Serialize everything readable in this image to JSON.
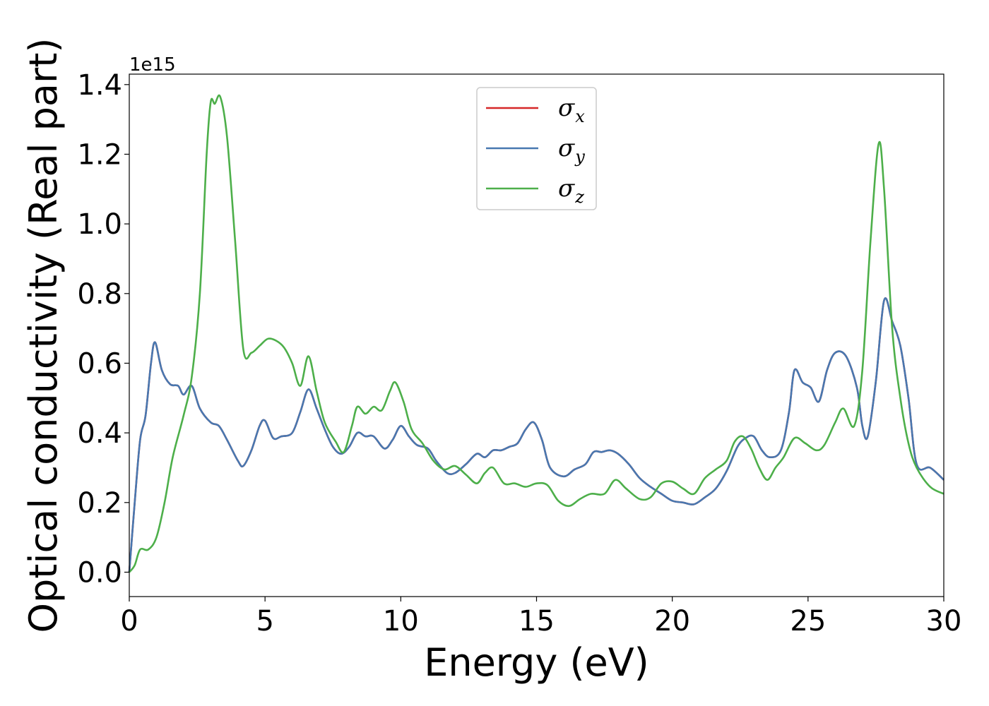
{
  "chart_data": {
    "type": "line",
    "xlabel": "Energy (eV)",
    "ylabel": "Optical conductivity (Real part)",
    "y_offset_label": "1e15",
    "xlim": [
      0,
      30
    ],
    "ylim": [
      -0.07,
      1.43
    ],
    "x_ticks": [
      0,
      5,
      10,
      15,
      20,
      25,
      30
    ],
    "x_tick_labels": [
      "0",
      "5",
      "10",
      "15",
      "20",
      "25",
      "30"
    ],
    "y_ticks": [
      0.0,
      0.2,
      0.4,
      0.6,
      0.8,
      1.0,
      1.2,
      1.4
    ],
    "y_tick_labels": [
      "0.0",
      "0.2",
      "0.4",
      "0.6",
      "0.8",
      "1.0",
      "1.2",
      "1.4"
    ],
    "grid": false,
    "legend_position": "top-center",
    "series": [
      {
        "name": "σx",
        "legend_symbol": "σ",
        "legend_subscript": "x",
        "color": "#d62728",
        "shares_data_with": "σy"
      },
      {
        "name": "σy",
        "legend_symbol": "σ",
        "legend_subscript": "y",
        "color": "#4878b0",
        "points": [
          [
            0,
            0.0
          ],
          [
            0.2,
            0.2
          ],
          [
            0.4,
            0.38
          ],
          [
            0.6,
            0.45
          ],
          [
            0.8,
            0.6
          ],
          [
            0.95,
            0.66
          ],
          [
            1.2,
            0.58
          ],
          [
            1.5,
            0.54
          ],
          [
            1.8,
            0.535
          ],
          [
            2.0,
            0.51
          ],
          [
            2.3,
            0.535
          ],
          [
            2.6,
            0.47
          ],
          [
            3.0,
            0.43
          ],
          [
            3.3,
            0.42
          ],
          [
            3.6,
            0.38
          ],
          [
            4.0,
            0.32
          ],
          [
            4.2,
            0.305
          ],
          [
            4.5,
            0.35
          ],
          [
            4.8,
            0.42
          ],
          [
            5.0,
            0.435
          ],
          [
            5.3,
            0.385
          ],
          [
            5.6,
            0.39
          ],
          [
            6.0,
            0.4
          ],
          [
            6.3,
            0.46
          ],
          [
            6.6,
            0.525
          ],
          [
            6.9,
            0.47
          ],
          [
            7.2,
            0.41
          ],
          [
            7.5,
            0.36
          ],
          [
            7.8,
            0.34
          ],
          [
            8.1,
            0.36
          ],
          [
            8.4,
            0.4
          ],
          [
            8.7,
            0.39
          ],
          [
            9.0,
            0.39
          ],
          [
            9.4,
            0.355
          ],
          [
            9.7,
            0.38
          ],
          [
            10.0,
            0.42
          ],
          [
            10.3,
            0.39
          ],
          [
            10.6,
            0.365
          ],
          [
            11.0,
            0.355
          ],
          [
            11.3,
            0.32
          ],
          [
            11.7,
            0.285
          ],
          [
            12.0,
            0.285
          ],
          [
            12.4,
            0.31
          ],
          [
            12.8,
            0.34
          ],
          [
            13.1,
            0.33
          ],
          [
            13.4,
            0.35
          ],
          [
            13.7,
            0.35
          ],
          [
            14.0,
            0.36
          ],
          [
            14.3,
            0.37
          ],
          [
            14.6,
            0.41
          ],
          [
            14.9,
            0.43
          ],
          [
            15.2,
            0.38
          ],
          [
            15.5,
            0.3
          ],
          [
            16.0,
            0.275
          ],
          [
            16.4,
            0.295
          ],
          [
            16.8,
            0.31
          ],
          [
            17.1,
            0.345
          ],
          [
            17.4,
            0.345
          ],
          [
            17.7,
            0.35
          ],
          [
            18.0,
            0.34
          ],
          [
            18.4,
            0.31
          ],
          [
            18.8,
            0.27
          ],
          [
            19.2,
            0.245
          ],
          [
            19.6,
            0.225
          ],
          [
            20.0,
            0.205
          ],
          [
            20.4,
            0.2
          ],
          [
            20.8,
            0.195
          ],
          [
            21.2,
            0.215
          ],
          [
            21.6,
            0.24
          ],
          [
            22.0,
            0.29
          ],
          [
            22.4,
            0.36
          ],
          [
            22.7,
            0.385
          ],
          [
            23.0,
            0.39
          ],
          [
            23.3,
            0.35
          ],
          [
            23.6,
            0.33
          ],
          [
            24.0,
            0.35
          ],
          [
            24.3,
            0.46
          ],
          [
            24.5,
            0.58
          ],
          [
            24.8,
            0.545
          ],
          [
            25.1,
            0.53
          ],
          [
            25.4,
            0.49
          ],
          [
            25.7,
            0.58
          ],
          [
            26.0,
            0.63
          ],
          [
            26.4,
            0.62
          ],
          [
            26.8,
            0.53
          ],
          [
            27.0,
            0.42
          ],
          [
            27.2,
            0.39
          ],
          [
            27.5,
            0.55
          ],
          [
            27.8,
            0.78
          ],
          [
            28.1,
            0.72
          ],
          [
            28.4,
            0.65
          ],
          [
            28.7,
            0.5
          ],
          [
            29.0,
            0.31
          ],
          [
            29.5,
            0.3
          ],
          [
            30.0,
            0.265
          ]
        ]
      },
      {
        "name": "σz",
        "legend_symbol": "σ",
        "legend_subscript": "z",
        "color": "#4daf4a",
        "points": [
          [
            0,
            0.0
          ],
          [
            0.2,
            0.02
          ],
          [
            0.4,
            0.065
          ],
          [
            0.7,
            0.065
          ],
          [
            1.0,
            0.1
          ],
          [
            1.3,
            0.2
          ],
          [
            1.6,
            0.33
          ],
          [
            2.0,
            0.45
          ],
          [
            2.3,
            0.56
          ],
          [
            2.6,
            0.8
          ],
          [
            2.85,
            1.2
          ],
          [
            3.0,
            1.35
          ],
          [
            3.15,
            1.345
          ],
          [
            3.35,
            1.365
          ],
          [
            3.6,
            1.25
          ],
          [
            3.9,
            0.95
          ],
          [
            4.2,
            0.64
          ],
          [
            4.5,
            0.63
          ],
          [
            4.8,
            0.65
          ],
          [
            5.1,
            0.67
          ],
          [
            5.4,
            0.665
          ],
          [
            5.7,
            0.645
          ],
          [
            6.0,
            0.6
          ],
          [
            6.3,
            0.535
          ],
          [
            6.6,
            0.62
          ],
          [
            6.9,
            0.52
          ],
          [
            7.2,
            0.43
          ],
          [
            7.6,
            0.375
          ],
          [
            7.9,
            0.345
          ],
          [
            8.2,
            0.42
          ],
          [
            8.4,
            0.475
          ],
          [
            8.7,
            0.455
          ],
          [
            9.0,
            0.475
          ],
          [
            9.3,
            0.465
          ],
          [
            9.6,
            0.52
          ],
          [
            9.8,
            0.545
          ],
          [
            10.1,
            0.49
          ],
          [
            10.4,
            0.41
          ],
          [
            10.8,
            0.37
          ],
          [
            11.2,
            0.32
          ],
          [
            11.6,
            0.295
          ],
          [
            12.0,
            0.305
          ],
          [
            12.4,
            0.28
          ],
          [
            12.8,
            0.255
          ],
          [
            13.1,
            0.285
          ],
          [
            13.4,
            0.3
          ],
          [
            13.8,
            0.255
          ],
          [
            14.2,
            0.255
          ],
          [
            14.6,
            0.245
          ],
          [
            15.0,
            0.255
          ],
          [
            15.4,
            0.25
          ],
          [
            15.8,
            0.205
          ],
          [
            16.2,
            0.19
          ],
          [
            16.6,
            0.21
          ],
          [
            17.0,
            0.225
          ],
          [
            17.5,
            0.225
          ],
          [
            17.9,
            0.265
          ],
          [
            18.3,
            0.24
          ],
          [
            18.8,
            0.21
          ],
          [
            19.2,
            0.215
          ],
          [
            19.6,
            0.255
          ],
          [
            20.0,
            0.26
          ],
          [
            20.4,
            0.24
          ],
          [
            20.8,
            0.225
          ],
          [
            21.2,
            0.27
          ],
          [
            21.6,
            0.295
          ],
          [
            22.0,
            0.32
          ],
          [
            22.3,
            0.375
          ],
          [
            22.6,
            0.39
          ],
          [
            22.9,
            0.355
          ],
          [
            23.2,
            0.3
          ],
          [
            23.5,
            0.265
          ],
          [
            23.8,
            0.3
          ],
          [
            24.1,
            0.33
          ],
          [
            24.5,
            0.385
          ],
          [
            24.9,
            0.37
          ],
          [
            25.3,
            0.35
          ],
          [
            25.6,
            0.365
          ],
          [
            26.0,
            0.43
          ],
          [
            26.3,
            0.47
          ],
          [
            26.7,
            0.42
          ],
          [
            27.0,
            0.58
          ],
          [
            27.3,
            0.95
          ],
          [
            27.6,
            1.23
          ],
          [
            27.8,
            1.1
          ],
          [
            28.1,
            0.7
          ],
          [
            28.4,
            0.5
          ],
          [
            28.7,
            0.37
          ],
          [
            29.0,
            0.3
          ],
          [
            29.5,
            0.245
          ],
          [
            30.0,
            0.225
          ]
        ]
      }
    ]
  }
}
